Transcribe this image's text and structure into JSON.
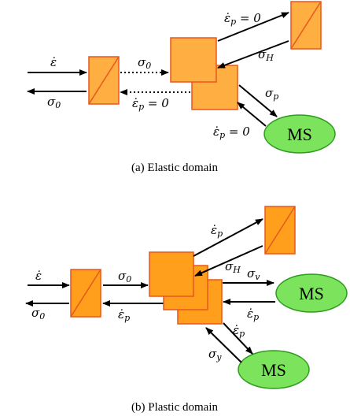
{
  "captions": {
    "a": "(a) Elastic domain",
    "b": "(b) Plastic domain"
  },
  "colors": {
    "box_fill_a": "#FFAE42",
    "box_fill_b": "#FF9F1C",
    "box_stroke": "#E8571E",
    "ms_fill": "#7CE35C",
    "ms_stroke": "#2E9B1E"
  },
  "elastic": {
    "eps_dot_in": "ε̇",
    "sigma_0_out": "σ",
    "sigma_0_out_sub": "0",
    "sigma_0_mid": "σ",
    "sigma_0_mid_sub": "0",
    "eps_p_zero_mid": "ε̇",
    "eps_p_zero_mid_sub": "p",
    "eps_p_zero_mid_eq": " = 0",
    "eps_p_zero_top": "ε̇",
    "eps_p_zero_top_sub": "p",
    "eps_p_zero_top_eq": " = 0",
    "sigma_H": "σ",
    "sigma_H_sub": "H",
    "sigma_p": "σ",
    "sigma_p_sub": "p",
    "eps_p_zero_ms": "ε̇",
    "eps_p_zero_ms_sub": "p",
    "eps_p_zero_ms_eq": " = 0",
    "ms_label": "MS"
  },
  "plastic": {
    "eps_dot_in": "ε̇",
    "sigma_0_out": "σ",
    "sigma_0_out_sub": "0",
    "sigma_0_mid": "σ",
    "sigma_0_mid_sub": "0",
    "eps_p_mid": "ε̇",
    "eps_p_mid_sub": "p",
    "eps_p_top": "ε̇",
    "eps_p_top_sub": "p",
    "sigma_H": "σ",
    "sigma_H_sub": "H",
    "sigma_v": "σ",
    "sigma_v_sub": "v",
    "eps_p_ms1": "ε̇",
    "eps_p_ms1_sub": "p",
    "eps_p_ms2": "ε̇",
    "eps_p_ms2_sub": "p",
    "sigma_y": "σ",
    "sigma_y_sub": "y",
    "ms1_label": "MS",
    "ms2_label": "MS"
  }
}
